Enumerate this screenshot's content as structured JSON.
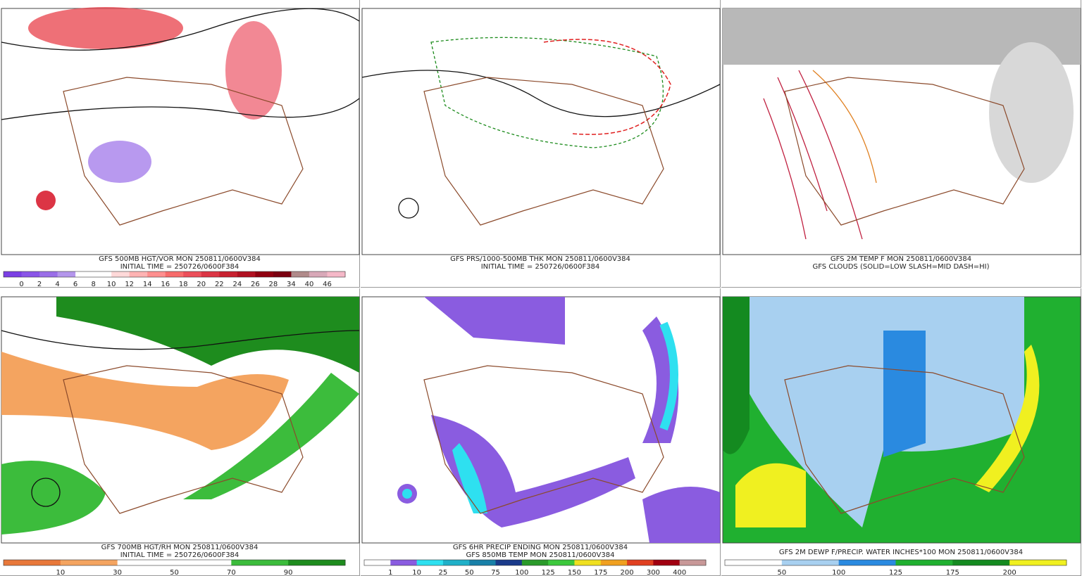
{
  "panels": [
    {
      "captions": [
        "GFS 500MB HGT/VOR MON 250811/0600V384",
        "INITIAL TIME = 250726/0600F384"
      ],
      "caption_colors": [
        "#222",
        "#1a1aa6"
      ],
      "colorbar": {
        "labels": [
          0,
          2,
          4,
          6,
          8,
          10,
          12,
          14,
          16,
          18,
          20,
          22,
          24,
          26,
          28,
          34,
          40,
          46
        ],
        "colors": [
          "#7b3fe4",
          "#8a55e8",
          "#9a6ee8",
          "#b496ec",
          "#ffffff",
          "#ffffff",
          "#ffd9d9",
          "#ffb3b3",
          "#ff8f8f",
          "#f76b6b",
          "#ec4f5a",
          "#dc3545",
          "#c8202f",
          "#b01020",
          "#900010",
          "#7a0010",
          "#b08a8a",
          "#d8a8b8",
          "#f5b8c8"
        ]
      }
    },
    {
      "captions": [
        "GFS PRS/1000-500MB THK MON 250811/0600V384",
        "INITIAL TIME = 250726/0600F384"
      ],
      "caption_colors": [
        "#222",
        "#1a1aa6"
      ]
    },
    {
      "captions": [
        "GFS 2M TEMP F MON 250811/0600V384",
        "GFS CLOUDS (SOLID=LOW SLASH=MID DASH=HI)"
      ],
      "caption_colors": [
        "#222",
        "#222"
      ]
    },
    {
      "captions": [
        "GFS 700MB HGT/RH MON 250811/0600V384",
        "INITIAL TIME = 250726/0600F384"
      ],
      "caption_colors": [
        "#222",
        "#1a1aa6"
      ],
      "colorbar": {
        "labels": [
          10,
          30,
          50,
          70,
          90
        ],
        "colors": [
          "#e8783a",
          "#f4a460",
          "#ffffff",
          "#ffffff",
          "#3cbc3c",
          "#1e8c1e"
        ]
      }
    },
    {
      "captions": [
        "GFS 6HR PRECIP ENDING MON 250811/0600V384",
        "GFS 850MB TEMP MON 250811/0600V384"
      ],
      "caption_colors": [
        "#222",
        "#222"
      ],
      "colorbar": {
        "labels": [
          1,
          10,
          25,
          50,
          75,
          100,
          125,
          150,
          175,
          200,
          300,
          400
        ],
        "colors": [
          "#ffffff",
          "#8a5ce0",
          "#2ee0f0",
          "#20b0c8",
          "#1880a8",
          "#1a3a8a",
          "#2a9a2a",
          "#3cc83c",
          "#f0e020",
          "#f0a020",
          "#e04020",
          "#a00010",
          "#c89898"
        ]
      }
    },
    {
      "captions": [
        "GFS 2M DEWP F/PRECIP. WATER INCHES*100 MON 250811/0600V384"
      ],
      "caption_colors": [
        "#222"
      ],
      "colorbar": {
        "labels": [
          50,
          100,
          125,
          175,
          200
        ],
        "colors": [
          "#ffffff",
          "#a8d0f0",
          "#2a8ae0",
          "#20b030",
          "#148a20",
          "#f0f020"
        ]
      }
    }
  ]
}
